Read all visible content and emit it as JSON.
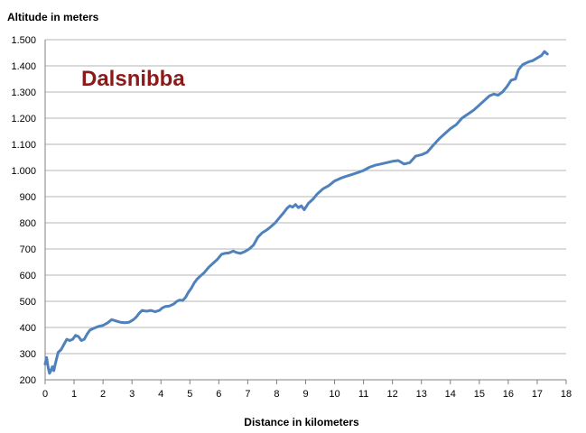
{
  "chart_data": {
    "type": "line",
    "title": "",
    "annotation": "Dalsnibba",
    "xlabel": "Distance in kilometers",
    "ylabel": "Altitude in meters",
    "xlim": [
      0,
      18
    ],
    "ylim": [
      200,
      1500
    ],
    "x_ticks": [
      "0",
      "1",
      "2",
      "3",
      "4",
      "5",
      "6",
      "7",
      "8",
      "9",
      "10",
      "11",
      "12",
      "13",
      "14",
      "15",
      "16",
      "17",
      "18"
    ],
    "y_ticks": [
      "200",
      "300",
      "400",
      "500",
      "600",
      "700",
      "800",
      "900",
      "1.000",
      "1.100",
      "1.200",
      "1.300",
      "1.400",
      "1.500"
    ],
    "grid": "horizontal",
    "legend": "none",
    "colors": {
      "line": "#4f81bd",
      "annotation": "#8b1a1a",
      "grid": "#b5b5b5",
      "axis": "#808080"
    },
    "series": [
      {
        "x": [
          0,
          0.05,
          0.1,
          0.15,
          0.2,
          0.25,
          0.3,
          0.35,
          0.45,
          0.55,
          0.65,
          0.75,
          0.85,
          0.95,
          1.05,
          1.15,
          1.25,
          1.35,
          1.45,
          1.55,
          1.7,
          1.85,
          2.0,
          2.15,
          2.3,
          2.45,
          2.6,
          2.75,
          2.9,
          3.05,
          3.15,
          3.25,
          3.35,
          3.5,
          3.65,
          3.8,
          3.95,
          4.05,
          4.15,
          4.3,
          4.45,
          4.55,
          4.65,
          4.75,
          4.85,
          4.95,
          5.05,
          5.15,
          5.25,
          5.35,
          5.5,
          5.65,
          5.8,
          5.95,
          6.1,
          6.2,
          6.35,
          6.5,
          6.6,
          6.75,
          6.9,
          7.05,
          7.2,
          7.35,
          7.5,
          7.65,
          7.8,
          7.95,
          8.1,
          8.25,
          8.35,
          8.45,
          8.55,
          8.65,
          8.75,
          8.85,
          8.95,
          9.1,
          9.25,
          9.4,
          9.6,
          9.8,
          10.0,
          10.2,
          10.4,
          10.6,
          10.8,
          11.0,
          11.2,
          11.4,
          11.6,
          11.8,
          12.0,
          12.2,
          12.4,
          12.6,
          12.8,
          13.0,
          13.2,
          13.4,
          13.6,
          13.8,
          14.0,
          14.2,
          14.4,
          14.6,
          14.8,
          15.0,
          15.2,
          15.35,
          15.5,
          15.65,
          15.8,
          15.95,
          16.1,
          16.25,
          16.35,
          16.5,
          16.7,
          16.85,
          17.0,
          17.15,
          17.25,
          17.35
        ],
        "y": [
          260,
          285,
          250,
          225,
          235,
          250,
          235,
          260,
          305,
          315,
          335,
          355,
          350,
          355,
          370,
          365,
          350,
          355,
          375,
          390,
          398,
          404,
          408,
          417,
          430,
          425,
          420,
          418,
          420,
          430,
          440,
          455,
          465,
          462,
          465,
          460,
          465,
          475,
          480,
          482,
          490,
          500,
          505,
          503,
          515,
          535,
          550,
          570,
          585,
          595,
          610,
          630,
          645,
          660,
          680,
          683,
          685,
          692,
          687,
          683,
          690,
          700,
          715,
          745,
          762,
          772,
          785,
          800,
          820,
          840,
          855,
          865,
          860,
          870,
          858,
          865,
          850,
          875,
          890,
          910,
          930,
          942,
          960,
          970,
          978,
          985,
          992,
          1000,
          1012,
          1020,
          1025,
          1030,
          1035,
          1038,
          1025,
          1030,
          1055,
          1060,
          1070,
          1095,
          1120,
          1140,
          1160,
          1175,
          1200,
          1215,
          1230,
          1250,
          1270,
          1285,
          1292,
          1288,
          1300,
          1320,
          1345,
          1350,
          1385,
          1405,
          1415,
          1420,
          1430,
          1440,
          1455,
          1445
        ]
      }
    ]
  }
}
